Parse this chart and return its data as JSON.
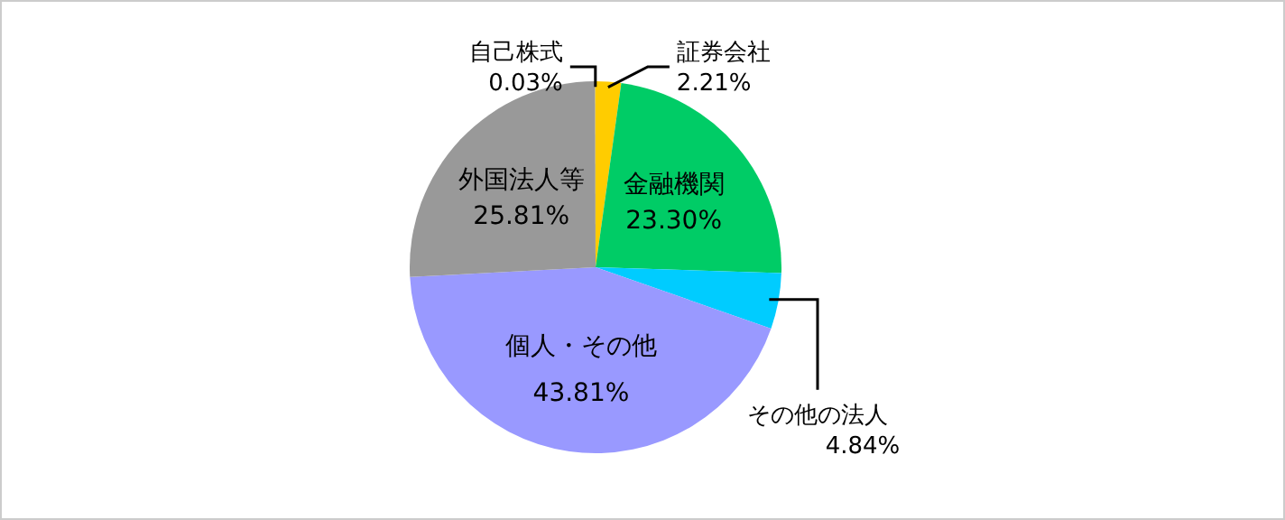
{
  "chart_data": {
    "type": "pie",
    "categories": [
      "証券会社",
      "金融機関",
      "その他の法人",
      "個人・その他",
      "外国法人等",
      "自己株式"
    ],
    "values": [
      2.21,
      23.3,
      4.84,
      43.81,
      25.81,
      0.03
    ],
    "colors": [
      "#ffcc00",
      "#00cc66",
      "#00ccff",
      "#9999ff",
      "#999999",
      "#ffcc00"
    ],
    "value_labels": [
      "2.21%",
      "23.30%",
      "4.84%",
      "43.81%",
      "25.81%",
      "0.03%"
    ]
  }
}
